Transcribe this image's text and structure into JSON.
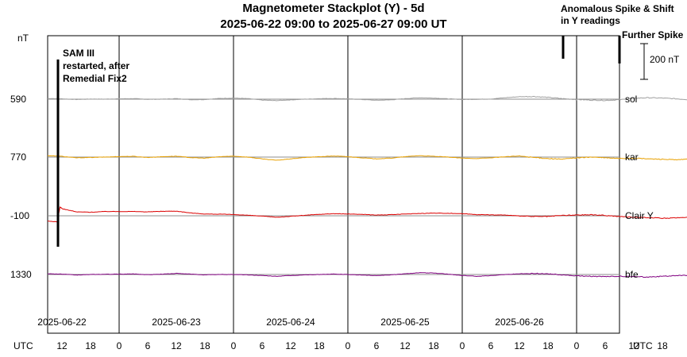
{
  "chart_data": {
    "type": "line",
    "title": "Magnetometer Stackplot (Y) - 5d",
    "subtitle": "2025-06-22 09:00 to 2025-06-27 09:00 UT",
    "y_unit": "nT",
    "x_axis_label": "UTC",
    "hour_ticks": [
      "12",
      "18",
      "0",
      "6",
      "12",
      "18",
      "0",
      "6",
      "12",
      "18",
      "0",
      "6",
      "12",
      "18",
      "0",
      "6",
      "12",
      "18",
      "0",
      "6",
      "12",
      "18",
      "0",
      "6"
    ],
    "day_labels": [
      "2025-06-22",
      "2025-06-23",
      "2025-06-24",
      "2025-06-25",
      "2025-06-26"
    ],
    "scale_bar": "200 nT",
    "series": [
      {
        "name": "sol",
        "baseline": "590",
        "color": "#a0a0a0",
        "points": [
          [
            0,
            4
          ],
          [
            3,
            2
          ],
          [
            6,
            -2
          ],
          [
            9,
            1
          ],
          [
            12,
            0
          ],
          [
            15,
            2
          ],
          [
            18,
            3
          ],
          [
            21,
            -1
          ],
          [
            24,
            0
          ],
          [
            27,
            3
          ],
          [
            30,
            -3
          ],
          [
            33,
            -2
          ],
          [
            36,
            4
          ],
          [
            39,
            6
          ],
          [
            42,
            3
          ],
          [
            45,
            -5
          ],
          [
            48,
            -8
          ],
          [
            51,
            -4
          ],
          [
            54,
            0
          ],
          [
            57,
            3
          ],
          [
            60,
            4
          ],
          [
            63,
            2
          ],
          [
            66,
            -2
          ],
          [
            69,
            -6
          ],
          [
            72,
            -4
          ],
          [
            75,
            3
          ],
          [
            78,
            8
          ],
          [
            81,
            6
          ],
          [
            84,
            2
          ],
          [
            87,
            -2
          ],
          [
            90,
            -1
          ],
          [
            93,
            1
          ],
          [
            96,
            8
          ],
          [
            99,
            14
          ],
          [
            102,
            15
          ],
          [
            105,
            10
          ],
          [
            108,
            3
          ],
          [
            111,
            -2
          ],
          [
            114,
            -5
          ],
          [
            117,
            -7
          ],
          [
            120,
            -3
          ],
          [
            123,
            5
          ],
          [
            126,
            8
          ],
          [
            129,
            6
          ],
          [
            132,
            2
          ],
          [
            135,
            -3
          ],
          [
            138,
            -6
          ],
          [
            140,
            -12
          ],
          [
            140.5,
            -30
          ],
          [
            141,
            -34
          ],
          [
            143,
            -10
          ],
          [
            145,
            -22
          ],
          [
            147,
            -20
          ],
          [
            149,
            -12
          ],
          [
            151,
            -18
          ],
          [
            153,
            -16
          ],
          [
            155,
            -10
          ],
          [
            156,
            -18
          ],
          [
            157,
            -4
          ]
        ]
      },
      {
        "name": "kar",
        "baseline": "770",
        "color": "#e8a000",
        "points": [
          [
            0,
            8
          ],
          [
            3,
            4
          ],
          [
            6,
            -4
          ],
          [
            9,
            -2
          ],
          [
            12,
            0
          ],
          [
            15,
            3
          ],
          [
            18,
            4
          ],
          [
            21,
            -2
          ],
          [
            24,
            2
          ],
          [
            27,
            5
          ],
          [
            30,
            -3
          ],
          [
            33,
            -6
          ],
          [
            36,
            2
          ],
          [
            39,
            5
          ],
          [
            42,
            0
          ],
          [
            45,
            -10
          ],
          [
            48,
            -18
          ],
          [
            51,
            -10
          ],
          [
            54,
            -2
          ],
          [
            57,
            2
          ],
          [
            60,
            6
          ],
          [
            63,
            2
          ],
          [
            66,
            -4
          ],
          [
            69,
            -10
          ],
          [
            72,
            -6
          ],
          [
            75,
            2
          ],
          [
            78,
            8
          ],
          [
            81,
            4
          ],
          [
            84,
            0
          ],
          [
            87,
            -6
          ],
          [
            90,
            -8
          ],
          [
            93,
            -4
          ],
          [
            96,
            2
          ],
          [
            99,
            6
          ],
          [
            102,
            -2
          ],
          [
            105,
            -8
          ],
          [
            108,
            -12
          ],
          [
            111,
            -4
          ],
          [
            114,
            0
          ],
          [
            117,
            -4
          ],
          [
            120,
            -8
          ],
          [
            123,
            -6
          ],
          [
            126,
            -10
          ],
          [
            129,
            -12
          ],
          [
            132,
            -16
          ],
          [
            135,
            -10
          ],
          [
            137,
            -4
          ],
          [
            139,
            -12
          ],
          [
            140,
            -18
          ],
          [
            141,
            -26
          ],
          [
            142,
            2
          ],
          [
            143,
            -4
          ],
          [
            145,
            8
          ],
          [
            147,
            -6
          ],
          [
            149,
            0
          ],
          [
            151,
            4
          ],
          [
            153,
            6
          ],
          [
            155,
            8
          ],
          [
            157,
            10
          ]
        ]
      },
      {
        "name": "Clair Y",
        "baseline": "-100",
        "color": "#dc0000",
        "points": [
          [
            0,
            -30
          ],
          [
            2,
            -34
          ],
          [
            2.6,
            50
          ],
          [
            3,
            40
          ],
          [
            6,
            22
          ],
          [
            9,
            20
          ],
          [
            12,
            24
          ],
          [
            15,
            24
          ],
          [
            18,
            24
          ],
          [
            21,
            22
          ],
          [
            24,
            25
          ],
          [
            27,
            26
          ],
          [
            30,
            16
          ],
          [
            33,
            10
          ],
          [
            36,
            9
          ],
          [
            39,
            7
          ],
          [
            42,
            3
          ],
          [
            45,
            -2
          ],
          [
            48,
            -8
          ],
          [
            51,
            -3
          ],
          [
            54,
            3
          ],
          [
            57,
            8
          ],
          [
            60,
            12
          ],
          [
            63,
            10
          ],
          [
            66,
            8
          ],
          [
            69,
            4
          ],
          [
            72,
            6
          ],
          [
            75,
            10
          ],
          [
            78,
            13
          ],
          [
            81,
            15
          ],
          [
            84,
            14
          ],
          [
            87,
            12
          ],
          [
            90,
            7
          ],
          [
            93,
            5
          ],
          [
            96,
            4
          ],
          [
            99,
            -1
          ],
          [
            102,
            -4
          ],
          [
            105,
            -4
          ],
          [
            108,
            2
          ],
          [
            111,
            4
          ],
          [
            114,
            6
          ],
          [
            117,
            2
          ],
          [
            120,
            -4
          ],
          [
            123,
            -8
          ],
          [
            126,
            -10
          ],
          [
            129,
            -14
          ],
          [
            132,
            -12
          ],
          [
            135,
            -6
          ],
          [
            137,
            0
          ],
          [
            139,
            4
          ],
          [
            140,
            40
          ],
          [
            140.6,
            110
          ],
          [
            141,
            70
          ],
          [
            143,
            78
          ],
          [
            145,
            70
          ],
          [
            147,
            72
          ],
          [
            149,
            62
          ],
          [
            151,
            55
          ],
          [
            153,
            48
          ],
          [
            155,
            62
          ]
        ]
      },
      {
        "name": "bfe",
        "baseline": "1330",
        "color": "#800080",
        "points": [
          [
            0,
            4
          ],
          [
            3,
            2
          ],
          [
            6,
            -3
          ],
          [
            9,
            0
          ],
          [
            12,
            1
          ],
          [
            15,
            2
          ],
          [
            18,
            3
          ],
          [
            21,
            -1
          ],
          [
            24,
            2
          ],
          [
            27,
            6
          ],
          [
            30,
            2
          ],
          [
            33,
            -2
          ],
          [
            36,
            0
          ],
          [
            39,
            0
          ],
          [
            42,
            -2
          ],
          [
            45,
            -6
          ],
          [
            48,
            -10
          ],
          [
            51,
            -6
          ],
          [
            54,
            -2
          ],
          [
            57,
            0
          ],
          [
            60,
            2
          ],
          [
            63,
            0
          ],
          [
            66,
            -3
          ],
          [
            69,
            -6
          ],
          [
            72,
            -2
          ],
          [
            75,
            4
          ],
          [
            78,
            10
          ],
          [
            81,
            8
          ],
          [
            84,
            2
          ],
          [
            87,
            -6
          ],
          [
            90,
            -10
          ],
          [
            93,
            -6
          ],
          [
            96,
            0
          ],
          [
            99,
            4
          ],
          [
            102,
            6
          ],
          [
            105,
            4
          ],
          [
            108,
            -2
          ],
          [
            111,
            -8
          ],
          [
            114,
            -10
          ],
          [
            117,
            -12
          ],
          [
            120,
            -10
          ],
          [
            123,
            -12
          ],
          [
            126,
            -14
          ],
          [
            129,
            -10
          ],
          [
            132,
            -6
          ],
          [
            135,
            -4
          ],
          [
            137,
            -2
          ],
          [
            139,
            -4
          ],
          [
            140,
            -10
          ],
          [
            141,
            -4
          ],
          [
            143,
            0
          ],
          [
            145,
            4
          ],
          [
            146,
            8
          ],
          [
            147,
            -2
          ]
        ]
      }
    ],
    "annotations": [
      {
        "text": [
          "SAM III",
          "restarted, after",
          "Remedial Fix2"
        ]
      },
      {
        "text": [
          "Anomalous Spike & Shift",
          "in Y readings"
        ]
      },
      {
        "text": [
          "Further Spike"
        ]
      }
    ]
  }
}
